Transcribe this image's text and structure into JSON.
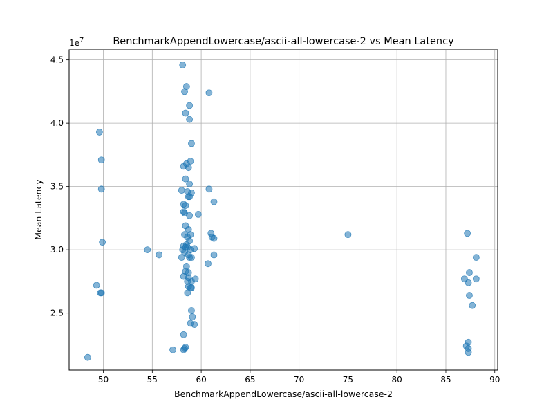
{
  "chart_data": {
    "type": "scatter",
    "title": "BenchmarkAppendLowercase/ascii-all-lowercase-2 vs Mean Latency",
    "xlabel": "BenchmarkAppendLowercase/ascii-all-lowercase-2",
    "ylabel": "Mean Latency",
    "y_offset_label": "1e7",
    "xlim": [
      46.5,
      90.3
    ],
    "ylim": [
      20500000,
      45800000
    ],
    "xticks": [
      50,
      55,
      60,
      65,
      70,
      75,
      80,
      85,
      90
    ],
    "xtick_labels": [
      "50",
      "55",
      "60",
      "65",
      "70",
      "75",
      "80",
      "85",
      "90"
    ],
    "yticks": [
      25000000,
      30000000,
      35000000,
      40000000,
      45000000
    ],
    "ytick_labels": [
      "2.5",
      "3.0",
      "3.5",
      "4.0",
      "4.5"
    ],
    "grid": true,
    "marker_color": "#1f77b4",
    "marker_alpha": 0.55,
    "points": [
      [
        48.4,
        21500000
      ],
      [
        49.3,
        27200000
      ],
      [
        49.6,
        39300000
      ],
      [
        49.7,
        26600000
      ],
      [
        49.8,
        26600000
      ],
      [
        49.8,
        37100000
      ],
      [
        49.8,
        34800000
      ],
      [
        49.9,
        30600000
      ],
      [
        54.5,
        30000000
      ],
      [
        55.7,
        29600000
      ],
      [
        57.1,
        22100000
      ],
      [
        58.1,
        44600000
      ],
      [
        58.3,
        42500000
      ],
      [
        58.5,
        42900000
      ],
      [
        58.8,
        41400000
      ],
      [
        58.4,
        40800000
      ],
      [
        58.8,
        40300000
      ],
      [
        59.0,
        38400000
      ],
      [
        58.9,
        37000000
      ],
      [
        58.5,
        36800000
      ],
      [
        58.2,
        36600000
      ],
      [
        58.7,
        36500000
      ],
      [
        58.4,
        35600000
      ],
      [
        58.8,
        35200000
      ],
      [
        58.0,
        34700000
      ],
      [
        58.6,
        34600000
      ],
      [
        59.0,
        34500000
      ],
      [
        58.7,
        34200000
      ],
      [
        58.8,
        34200000
      ],
      [
        58.2,
        33600000
      ],
      [
        58.4,
        33500000
      ],
      [
        58.2,
        33000000
      ],
      [
        58.3,
        32900000
      ],
      [
        58.8,
        32700000
      ],
      [
        58.4,
        31900000
      ],
      [
        58.7,
        31600000
      ],
      [
        58.3,
        31200000
      ],
      [
        58.6,
        31000000
      ],
      [
        58.9,
        31200000
      ],
      [
        58.8,
        30700000
      ],
      [
        58.5,
        30400000
      ],
      [
        58.2,
        30300000
      ],
      [
        58.4,
        30200000
      ],
      [
        58.1,
        30000000
      ],
      [
        58.6,
        30200000
      ],
      [
        58.9,
        30000000
      ],
      [
        59.3,
        30100000
      ],
      [
        58.3,
        29800000
      ],
      [
        58.7,
        29600000
      ],
      [
        58.0,
        29400000
      ],
      [
        58.8,
        29400000
      ],
      [
        59.0,
        29400000
      ],
      [
        58.5,
        28700000
      ],
      [
        58.4,
        28300000
      ],
      [
        58.7,
        28200000
      ],
      [
        58.2,
        27900000
      ],
      [
        58.7,
        27800000
      ],
      [
        58.6,
        27500000
      ],
      [
        59.0,
        27500000
      ],
      [
        59.4,
        27700000
      ],
      [
        58.7,
        27100000
      ],
      [
        58.9,
        27000000
      ],
      [
        59.0,
        27000000
      ],
      [
        58.6,
        26600000
      ],
      [
        59.0,
        25200000
      ],
      [
        59.1,
        24700000
      ],
      [
        58.9,
        24200000
      ],
      [
        59.3,
        24100000
      ],
      [
        58.2,
        23300000
      ],
      [
        58.3,
        22200000
      ],
      [
        58.4,
        22300000
      ],
      [
        58.2,
        22100000
      ],
      [
        59.7,
        32800000
      ],
      [
        60.8,
        42400000
      ],
      [
        60.8,
        34800000
      ],
      [
        61.3,
        33800000
      ],
      [
        61.0,
        31300000
      ],
      [
        61.1,
        31000000
      ],
      [
        61.3,
        30900000
      ],
      [
        60.7,
        28900000
      ],
      [
        61.3,
        29600000
      ],
      [
        75.0,
        31200000
      ],
      [
        87.2,
        31300000
      ],
      [
        88.1,
        29400000
      ],
      [
        87.4,
        28200000
      ],
      [
        86.9,
        27700000
      ],
      [
        87.3,
        27400000
      ],
      [
        88.1,
        27700000
      ],
      [
        87.4,
        26400000
      ],
      [
        87.7,
        25600000
      ],
      [
        87.1,
        22400000
      ],
      [
        87.3,
        22700000
      ],
      [
        87.3,
        22200000
      ],
      [
        87.3,
        21900000
      ]
    ]
  }
}
